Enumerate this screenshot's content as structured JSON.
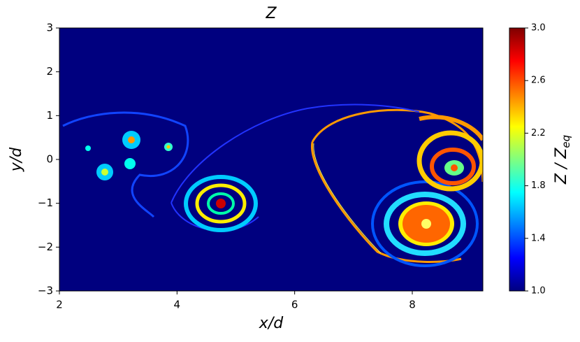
{
  "chart_data": {
    "type": "heatmap",
    "title": "Z",
    "xlabel": "x/d",
    "ylabel": "y/d",
    "xlim": [
      2,
      9.2
    ],
    "xticks": [
      2,
      4,
      6,
      8
    ],
    "ylim": [
      -3,
      3
    ],
    "yticks": [
      {
        "value": -3,
        "label": "−3"
      },
      {
        "value": -2,
        "label": "−2"
      },
      {
        "value": -1,
        "label": "−1"
      },
      0,
      1,
      2,
      3
    ],
    "colorbar": {
      "label": "Z / Z",
      "label_subscript": "eq",
      "lim": [
        1.0,
        3.0
      ],
      "ticks": [
        {
          "value": 1.0,
          "label": "1.0"
        },
        {
          "value": 1.4,
          "label": "1.4"
        },
        {
          "value": 1.8,
          "label": "1.8"
        },
        {
          "value": 2.2,
          "label": "2.2"
        },
        {
          "value": 2.6,
          "label": "2.6"
        },
        {
          "value": 3.0,
          "label": "3.0"
        }
      ]
    }
  }
}
